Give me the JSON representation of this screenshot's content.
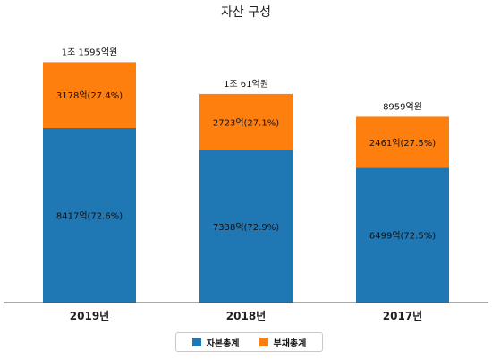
{
  "chart_data": {
    "type": "bar",
    "stacked": true,
    "title": "자산 구성",
    "categories": [
      "2019년",
      "2018년",
      "2017년"
    ],
    "totals": [
      "1조 1595억원",
      "1조 61억원",
      "8959억원"
    ],
    "ylim": [
      0,
      12000
    ],
    "grid": false,
    "legend_position": "bottom",
    "series": [
      {
        "name": "자본총계",
        "color": "#1f77b4",
        "values": [
          8417,
          7338,
          6499
        ],
        "labels": [
          "8417억(72.6%)",
          "7338억(72.9%)",
          "6499억(72.5%)"
        ]
      },
      {
        "name": "부채총계",
        "color": "#ff7f0e",
        "values": [
          3178,
          2723,
          2461
        ],
        "labels": [
          "3178억(27.4%)",
          "2723억(27.1%)",
          "2461억(27.5%)"
        ]
      }
    ]
  }
}
